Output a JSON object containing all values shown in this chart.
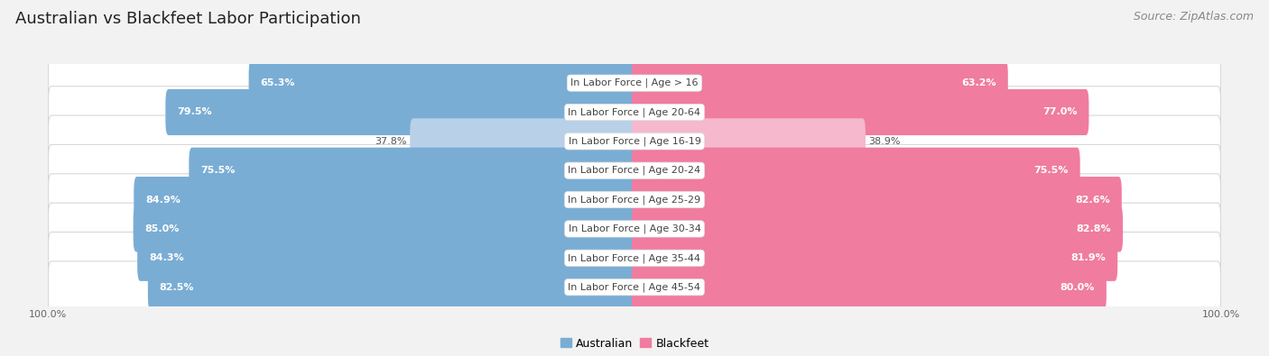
{
  "title": "Australian vs Blackfeet Labor Participation",
  "source": "Source: ZipAtlas.com",
  "categories": [
    "In Labor Force | Age > 16",
    "In Labor Force | Age 20-64",
    "In Labor Force | Age 16-19",
    "In Labor Force | Age 20-24",
    "In Labor Force | Age 25-29",
    "In Labor Force | Age 30-34",
    "In Labor Force | Age 35-44",
    "In Labor Force | Age 45-54"
  ],
  "australian_values": [
    65.3,
    79.5,
    37.8,
    75.5,
    84.9,
    85.0,
    84.3,
    82.5
  ],
  "blackfeet_values": [
    63.2,
    77.0,
    38.9,
    75.5,
    82.6,
    82.8,
    81.9,
    80.0
  ],
  "australian_color": "#7aadd4",
  "australian_color_light": "#b8d0e8",
  "blackfeet_color": "#f07ca0",
  "blackfeet_color_light": "#f5b8cc",
  "background_color": "#f2f2f2",
  "row_bg_color": "#ffffff",
  "row_border_color": "#d8d8d8",
  "max_value": 100.0,
  "legend_australian": "Australian",
  "legend_blackfeet": "Blackfeet",
  "title_fontsize": 13,
  "source_fontsize": 9,
  "label_fontsize": 8,
  "value_fontsize": 8
}
